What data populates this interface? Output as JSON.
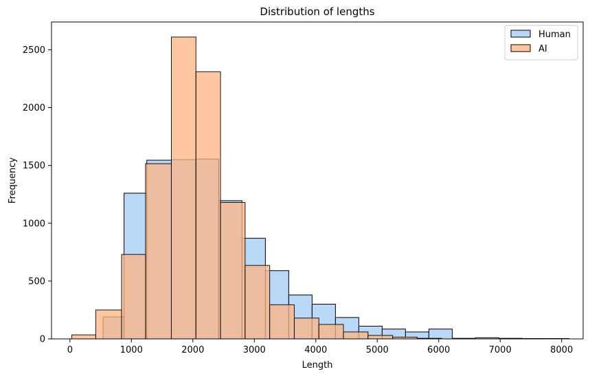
{
  "chart_data": {
    "type": "bar",
    "title": "Distribution of lengths",
    "xlabel": "Length",
    "ylabel": "Frequency",
    "xlim": [
      -300,
      8350
    ],
    "ylim": [
      0,
      2740
    ],
    "xticks": [
      0,
      1000,
      2000,
      3000,
      4000,
      5000,
      6000,
      7000,
      8000
    ],
    "yticks": [
      0,
      500,
      1000,
      1500,
      2000,
      2500
    ],
    "grid": false,
    "legend_position": "top-right",
    "series": [
      {
        "name": "Human",
        "color": "#a1c9f4",
        "edge": "#000000",
        "bins": [
          {
            "x0": 540,
            "x1": 880,
            "count": 190
          },
          {
            "x0": 880,
            "x1": 1250,
            "count": 1260
          },
          {
            "x0": 1250,
            "x1": 1650,
            "count": 1545
          },
          {
            "x0": 1650,
            "x1": 2050,
            "count": 1550
          },
          {
            "x0": 2050,
            "x1": 2420,
            "count": 1555
          },
          {
            "x0": 2420,
            "x1": 2800,
            "count": 1195
          },
          {
            "x0": 2800,
            "x1": 3180,
            "count": 870
          },
          {
            "x0": 3180,
            "x1": 3560,
            "count": 590
          },
          {
            "x0": 3560,
            "x1": 3940,
            "count": 380
          },
          {
            "x0": 3940,
            "x1": 4320,
            "count": 300
          },
          {
            "x0": 4320,
            "x1": 4700,
            "count": 185
          },
          {
            "x0": 4700,
            "x1": 5080,
            "count": 110
          },
          {
            "x0": 5080,
            "x1": 5460,
            "count": 85
          },
          {
            "x0": 5460,
            "x1": 5840,
            "count": 60
          },
          {
            "x0": 5840,
            "x1": 6220,
            "count": 85
          },
          {
            "x0": 6220,
            "x1": 6600,
            "count": 5
          },
          {
            "x0": 6600,
            "x1": 6980,
            "count": 10
          },
          {
            "x0": 6980,
            "x1": 7360,
            "count": 5
          },
          {
            "x0": 7360,
            "x1": 7740,
            "count": 3
          },
          {
            "x0": 7740,
            "x1": 8120,
            "count": 3
          }
        ]
      },
      {
        "name": "AI",
        "color": "#ffb482",
        "edge": "#000000",
        "bins": [
          {
            "x0": 30,
            "x1": 420,
            "count": 35
          },
          {
            "x0": 420,
            "x1": 840,
            "count": 250
          },
          {
            "x0": 840,
            "x1": 1230,
            "count": 730
          },
          {
            "x0": 1230,
            "x1": 1650,
            "count": 1515
          },
          {
            "x0": 1650,
            "x1": 2050,
            "count": 2610
          },
          {
            "x0": 2050,
            "x1": 2450,
            "count": 2310
          },
          {
            "x0": 2450,
            "x1": 2850,
            "count": 1180
          },
          {
            "x0": 2850,
            "x1": 3250,
            "count": 635
          },
          {
            "x0": 3250,
            "x1": 3650,
            "count": 295
          },
          {
            "x0": 3650,
            "x1": 4050,
            "count": 180
          },
          {
            "x0": 4050,
            "x1": 4450,
            "count": 125
          },
          {
            "x0": 4450,
            "x1": 4850,
            "count": 60
          },
          {
            "x0": 4850,
            "x1": 5250,
            "count": 30
          },
          {
            "x0": 5250,
            "x1": 5650,
            "count": 15
          },
          {
            "x0": 5650,
            "x1": 6050,
            "count": 5
          }
        ]
      }
    ]
  }
}
